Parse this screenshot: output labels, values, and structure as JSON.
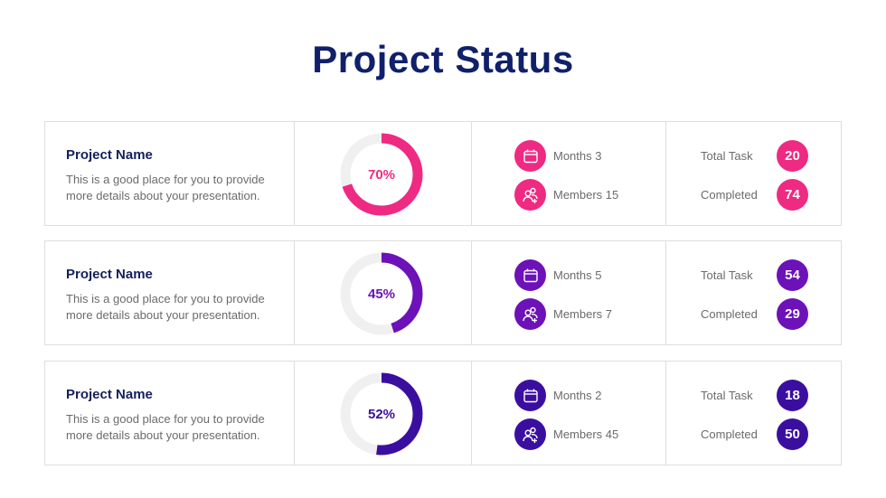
{
  "title": "Project Status",
  "projects": [
    {
      "name": "Project Name",
      "description_line1": "This is a good place for you to provide",
      "description_line2": "more details about your presentation.",
      "percent": 70,
      "percent_label": "70%",
      "color": "#ee2a82",
      "months_label": "Months 3",
      "members_label": "Members 15",
      "total_task_label": "Total Task",
      "total_task": "20",
      "completed_label": "Completed",
      "completed": "74"
    },
    {
      "name": "Project Name",
      "description_line1": "This is a good place for you to provide",
      "description_line2": "more details about your presentation.",
      "percent": 45,
      "percent_label": "45%",
      "color": "#6c12b8",
      "months_label": "Months 5",
      "members_label": "Members 7",
      "total_task_label": "Total Task",
      "total_task": "54",
      "completed_label": "Completed",
      "completed": "29"
    },
    {
      "name": "Project Name",
      "description_line1": "This is a good place for you to provide",
      "description_line2": "more details about your presentation.",
      "percent": 52,
      "percent_label": "52%",
      "color": "#3a0fa0",
      "months_label": "Months 2",
      "members_label": "Members 45",
      "total_task_label": "Total Task",
      "total_task": "18",
      "completed_label": "Completed",
      "completed": "50"
    }
  ],
  "icons": {
    "months": "calendar-icon",
    "members": "add-user-icon"
  },
  "colors": {
    "title": "#10206a",
    "track": "#f0f0f0",
    "border": "#dedede"
  }
}
